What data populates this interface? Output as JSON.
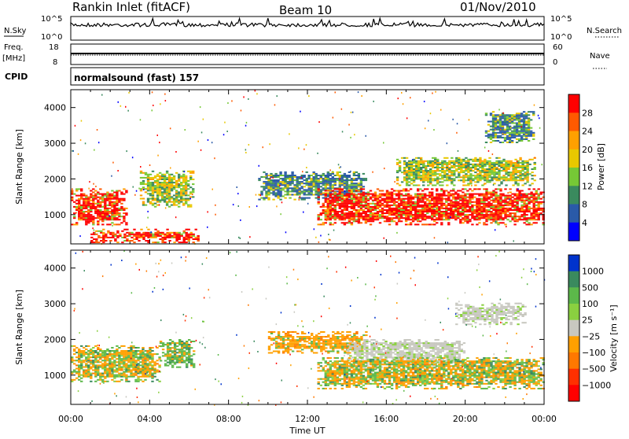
{
  "header": {
    "station": "Rankin Inlet (fitACF)",
    "beam": "Beam 10",
    "date": "01/Nov/2010"
  },
  "strip": {
    "nsky_label": "N.Sky",
    "nsky_ticks": [
      "10^5",
      "10^0"
    ],
    "nsearch_label": "N.Search",
    "nsearch_ticks": [
      "10^5",
      "10^0"
    ],
    "freq_label": "Freq.",
    "freq_unit": "[MHz]",
    "freq_ticks": [
      "18",
      "8"
    ],
    "nave_label": "Nave",
    "nave_ticks": [
      "60",
      "0"
    ],
    "cpid_label": "CPID",
    "cpid_value": "normalsound (fast) 157"
  },
  "chart_data": [
    {
      "type": "heatmap",
      "title": "",
      "xlabel": "Time UT",
      "ylabel": "Slant Range [km]",
      "xlim": [
        "00:00",
        "24:00"
      ],
      "ylim": [
        180,
        4500
      ],
      "x_ticks": [
        "00:00",
        "04:00",
        "08:00",
        "12:00",
        "16:00",
        "20:00",
        "00:00"
      ],
      "y_ticks": [
        1000,
        2000,
        3000,
        4000
      ],
      "colorbar": {
        "label": "Power [dB]",
        "ticks": [
          "28",
          "24",
          "20",
          "16",
          "12",
          "8",
          "4"
        ],
        "colors": [
          "#ff0000",
          "#ff5a00",
          "#ffa000",
          "#e8c800",
          "#76c836",
          "#3a8a5e",
          "#2a5aa8",
          "#0000ff"
        ]
      },
      "regions": [
        {
          "t0": 0.0,
          "t1": 2.8,
          "r0": 700,
          "r1": 1700,
          "value": "high"
        },
        {
          "t0": 1.0,
          "t1": 6.5,
          "r0": 200,
          "r1": 600,
          "value": "high"
        },
        {
          "t0": 3.5,
          "t1": 6.2,
          "r0": 1200,
          "r1": 2200,
          "value": "medium"
        },
        {
          "t0": 9.5,
          "t1": 15.0,
          "r0": 1400,
          "r1": 2200,
          "value": "low"
        },
        {
          "t0": 12.5,
          "t1": 24.0,
          "r0": 700,
          "r1": 1700,
          "value": "high"
        },
        {
          "t0": 16.5,
          "t1": 23.5,
          "r0": 1800,
          "r1": 2600,
          "value": "medium"
        },
        {
          "t0": 21.0,
          "t1": 23.5,
          "r0": 3000,
          "r1": 3900,
          "value": "low"
        }
      ]
    },
    {
      "type": "heatmap",
      "title": "",
      "xlabel": "Time UT",
      "ylabel": "Slant Range [km]",
      "xlim": [
        "00:00",
        "24:00"
      ],
      "ylim": [
        180,
        4500
      ],
      "x_ticks": [
        "00:00",
        "04:00",
        "08:00",
        "12:00",
        "16:00",
        "20:00",
        "00:00"
      ],
      "y_ticks": [
        1000,
        2000,
        3000,
        4000
      ],
      "colorbar": {
        "label": "Velocity [m s⁻¹]",
        "ticks": [
          "1000",
          "500",
          "100",
          "25",
          "−25",
          "−100",
          "−500",
          "−1000"
        ],
        "colors": [
          "#0033cc",
          "#3a8a5e",
          "#5cb84a",
          "#8ad040",
          "#c8c8c0",
          "#ffa000",
          "#ff7800",
          "#ff3000",
          "#ff0000"
        ]
      },
      "regions": [
        {
          "t0": 0.0,
          "t1": 4.5,
          "r0": 800,
          "r1": 1800,
          "value": "mixed green/orange"
        },
        {
          "t0": 4.5,
          "t1": 6.3,
          "r0": 1200,
          "r1": 2000,
          "value": "green"
        },
        {
          "t0": 10.0,
          "t1": 15.0,
          "r0": 1600,
          "r1": 2200,
          "value": "orange"
        },
        {
          "t0": 14.0,
          "t1": 20.0,
          "r0": 1200,
          "r1": 2000,
          "value": "grey"
        },
        {
          "t0": 19.5,
          "t1": 23.0,
          "r0": 2400,
          "r1": 3000,
          "value": "grey"
        },
        {
          "t0": 12.5,
          "t1": 24.0,
          "r0": 600,
          "r1": 1500,
          "value": "orange/green"
        }
      ]
    }
  ]
}
